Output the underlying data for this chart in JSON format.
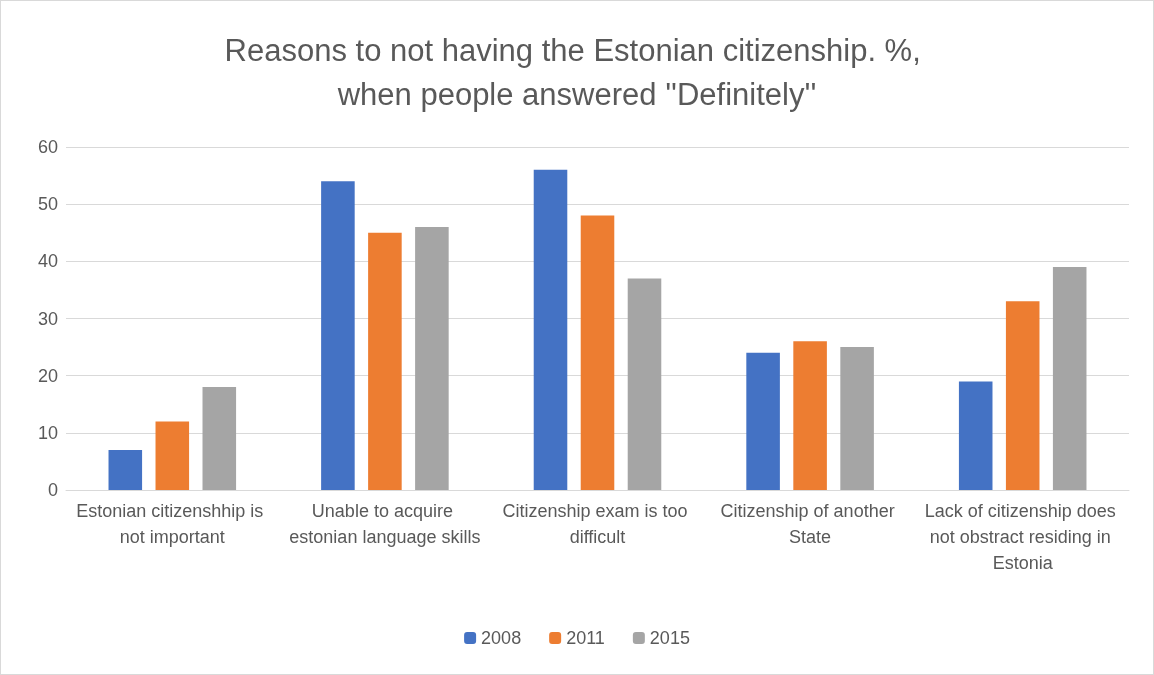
{
  "chart_data": {
    "type": "bar",
    "title": "Reasons to not having the Estonian citizenship. %, when people answered ''Definitely''",
    "categories": [
      "Estonian citizenshhip is not important",
      "Unable to acquire estonian language skills",
      "Citizenship exam is too difficult",
      "Citizenship of another State",
      "Lack of citizenship does not obstract residing in Estonia"
    ],
    "series": [
      {
        "name": "2008",
        "color": "#4472c4",
        "values": [
          7,
          54,
          56,
          24,
          19
        ]
      },
      {
        "name": "2011",
        "color": "#ed7d31",
        "values": [
          12,
          45,
          48,
          26,
          33
        ]
      },
      {
        "name": "2015",
        "color": "#a5a5a5",
        "values": [
          18,
          46,
          37,
          25,
          39
        ]
      }
    ],
    "ylim": [
      0,
      60
    ],
    "yticks": [
      0,
      10,
      20,
      30,
      40,
      50,
      60
    ],
    "grid": "y",
    "legend": "bottom"
  }
}
